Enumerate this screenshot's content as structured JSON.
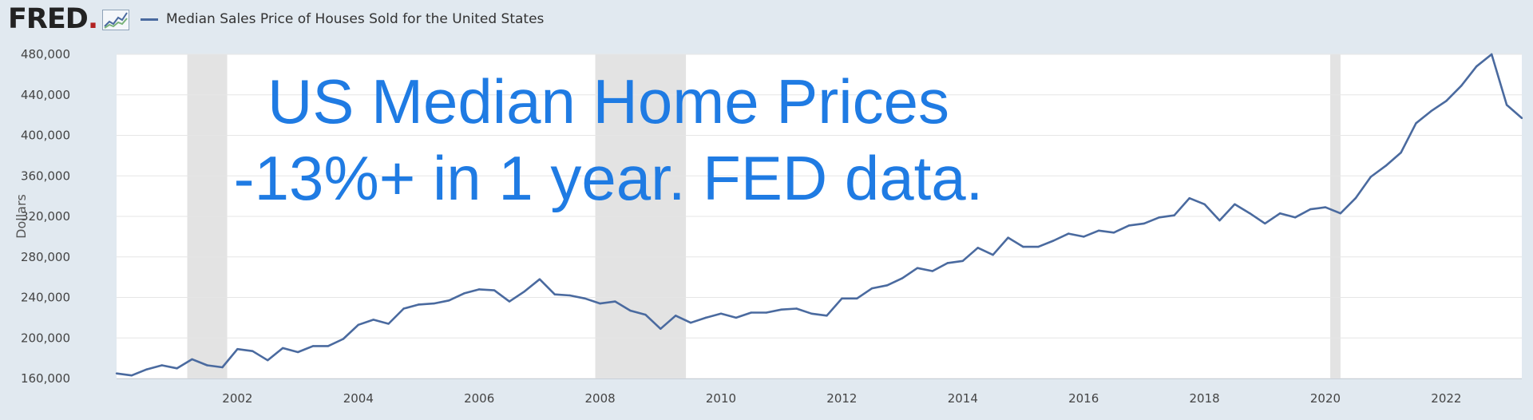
{
  "header": {
    "logo_text": "FRED",
    "logo_icon": "fred-sparkline-logo-icon",
    "legend_label": "Median Sales Price of Houses Sold for the United States"
  },
  "overlay": {
    "line1": "US Median Home Prices",
    "line2": "-13%+ in 1 year. FED data."
  },
  "colors": {
    "series": "#4a6a9f",
    "recession": "#e3e3e3",
    "overlay_text": "#1f7be3",
    "background": "#e1e9f0"
  },
  "chart_data": {
    "type": "line",
    "title": "",
    "xlabel": "",
    "ylabel": "Dollars",
    "xlim": [
      2000.0,
      2023.25
    ],
    "ylim": [
      160000,
      480000
    ],
    "yticks": [
      160000,
      200000,
      240000,
      280000,
      320000,
      360000,
      400000,
      440000,
      480000
    ],
    "ytick_labels": [
      "160,000",
      "200,000",
      "240,000",
      "280,000",
      "320,000",
      "360,000",
      "400,000",
      "440,000",
      "480,000"
    ],
    "xticks": [
      2002,
      2004,
      2006,
      2008,
      2010,
      2012,
      2014,
      2016,
      2018,
      2020,
      2022
    ],
    "xtick_labels": [
      "2002",
      "2004",
      "2006",
      "2008",
      "2010",
      "2012",
      "2014",
      "2016",
      "2018",
      "2020",
      "2022"
    ],
    "grid": true,
    "recessions": [
      [
        2001.17,
        2001.83
      ],
      [
        2007.92,
        2009.42
      ],
      [
        2020.08,
        2020.25
      ]
    ],
    "series": [
      {
        "name": "Median Sales Price of Houses Sold for the United States",
        "x": [
          2000.0,
          2000.25,
          2000.5,
          2000.75,
          2001.0,
          2001.25,
          2001.5,
          2001.75,
          2002.0,
          2002.25,
          2002.5,
          2002.75,
          2003.0,
          2003.25,
          2003.5,
          2003.75,
          2004.0,
          2004.25,
          2004.5,
          2004.75,
          2005.0,
          2005.25,
          2005.5,
          2005.75,
          2006.0,
          2006.25,
          2006.5,
          2006.75,
          2007.0,
          2007.25,
          2007.5,
          2007.75,
          2008.0,
          2008.25,
          2008.5,
          2008.75,
          2009.0,
          2009.25,
          2009.5,
          2009.75,
          2010.0,
          2010.25,
          2010.5,
          2010.75,
          2011.0,
          2011.25,
          2011.5,
          2011.75,
          2012.0,
          2012.25,
          2012.5,
          2012.75,
          2013.0,
          2013.25,
          2013.5,
          2013.75,
          2014.0,
          2014.25,
          2014.5,
          2014.75,
          2015.0,
          2015.25,
          2015.5,
          2015.75,
          2016.0,
          2016.25,
          2016.5,
          2016.75,
          2017.0,
          2017.25,
          2017.5,
          2017.75,
          2018.0,
          2018.25,
          2018.5,
          2018.75,
          2019.0,
          2019.25,
          2019.5,
          2019.75,
          2020.0,
          2020.25,
          2020.5,
          2020.75,
          2021.0,
          2021.25,
          2021.5,
          2021.75,
          2022.0,
          2022.25,
          2022.5,
          2022.75,
          2023.0,
          2023.25
        ],
        "values": [
          165000,
          163000,
          169000,
          173000,
          170000,
          179000,
          173000,
          171000,
          189000,
          187000,
          178000,
          190000,
          186000,
          192000,
          192000,
          199000,
          213000,
          218000,
          214000,
          229000,
          233000,
          234000,
          237000,
          244000,
          248000,
          247000,
          236000,
          246000,
          258000,
          243000,
          242000,
          239000,
          234000,
          236000,
          227000,
          223000,
          209000,
          222000,
          215000,
          220000,
          224000,
          220000,
          225000,
          225000,
          228000,
          229000,
          224000,
          222000,
          239000,
          239000,
          249000,
          252000,
          259000,
          269000,
          266000,
          274000,
          276000,
          289000,
          282000,
          299000,
          290000,
          290000,
          296000,
          303000,
          300000,
          306000,
          304000,
          311000,
          313000,
          319000,
          321000,
          338000,
          332000,
          316000,
          332000,
          323000,
          313000,
          323000,
          319000,
          327000,
          329000,
          323000,
          338000,
          359000,
          370000,
          383000,
          412000,
          424000,
          434000,
          449000,
          468000,
          480000,
          430000,
          417000
        ]
      }
    ]
  }
}
